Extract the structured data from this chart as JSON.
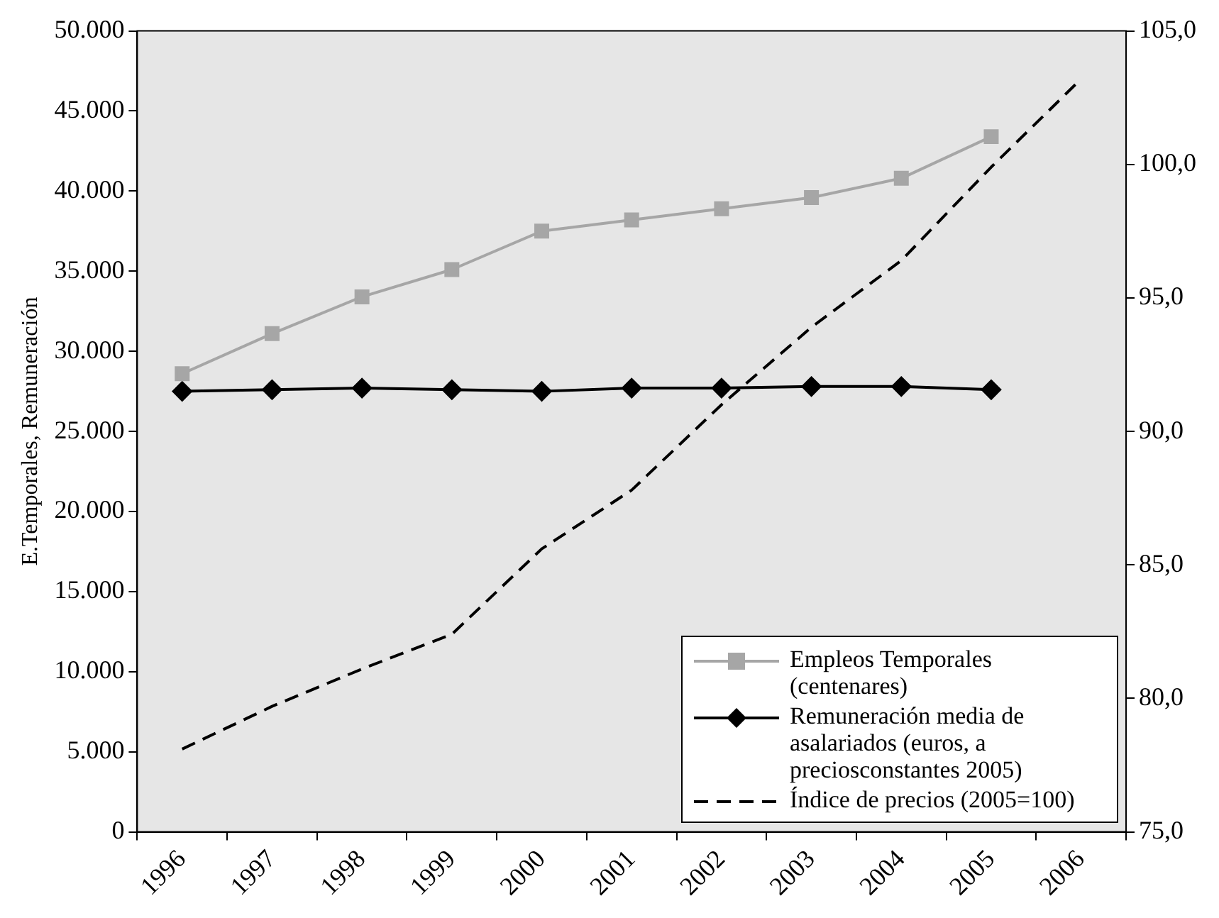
{
  "chart_data": {
    "type": "line",
    "ylabel": "E.Temporales, Remuneración",
    "categories": [
      "1996",
      "1997",
      "1998",
      "1999",
      "2000",
      "2001",
      "2002",
      "2003",
      "2004",
      "2005",
      "2006"
    ],
    "series": [
      {
        "name": "Empleos Temporales (centenares)",
        "color": "#a6a6a6",
        "marker": "square",
        "line_style": "solid",
        "values": [
          28600,
          31100,
          33400,
          35100,
          37500,
          38200,
          38900,
          39600,
          40800,
          43400,
          null
        ]
      },
      {
        "name": "Remuneración media de asalariados (euros, a preciosconstantes 2005)",
        "color": "#000000",
        "marker": "diamond",
        "line_style": "solid",
        "values": [
          27500,
          27600,
          27700,
          27600,
          27500,
          27700,
          27700,
          27800,
          27800,
          27600,
          null
        ]
      },
      {
        "name": "Índice de precios (2005=100)",
        "color": "#000000",
        "marker": "none",
        "line_style": "dashed",
        "axis": "y2",
        "values": [
          78.1,
          79.7,
          81.1,
          82.4,
          85.6,
          87.8,
          91.0,
          93.9,
          96.4,
          99.9,
          103.2
        ]
      }
    ],
    "ylim": [
      0,
      50000
    ],
    "yticks": [
      {
        "value": 0,
        "label": "0"
      },
      {
        "value": 5000,
        "label": "5.000"
      },
      {
        "value": 10000,
        "label": "10.000"
      },
      {
        "value": 15000,
        "label": "15.000"
      },
      {
        "value": 20000,
        "label": "20.000"
      },
      {
        "value": 25000,
        "label": "25.000"
      },
      {
        "value": 30000,
        "label": "30.000"
      },
      {
        "value": 35000,
        "label": "35.000"
      },
      {
        "value": 40000,
        "label": "40.000"
      },
      {
        "value": 45000,
        "label": "45.000"
      },
      {
        "value": 50000,
        "label": "50.000"
      }
    ],
    "y2lim": [
      75,
      105
    ],
    "y2ticks": [
      {
        "value": 75,
        "label": "75,0"
      },
      {
        "value": 80,
        "label": "80,0"
      },
      {
        "value": 85,
        "label": "85,0"
      },
      {
        "value": 90,
        "label": "90,0"
      },
      {
        "value": 95,
        "label": "95,0"
      },
      {
        "value": 100,
        "label": "100,0"
      },
      {
        "value": 105,
        "label": "105,0"
      }
    ],
    "grid": false,
    "legend": "bottom right"
  }
}
